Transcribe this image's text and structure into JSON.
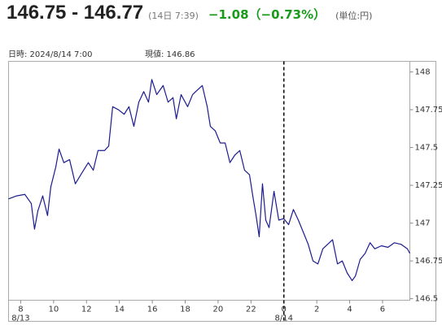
{
  "chart_data": {
    "type": "line",
    "title": "146.75 - 146.77",
    "subtitle": "(14日 7:39)",
    "change": "−1.08（−0.73%）",
    "unit_note": "(単位:円)",
    "info": [
      "日時: 2024/8/14 7:00",
      "現値: 146.86"
    ],
    "color": "#1c1c8f",
    "xlim": [
      7.26,
      31.66
    ],
    "ylim": [
      146.49,
      148.07
    ],
    "yticks": [
      148,
      147.75,
      147.5,
      147.25,
      147,
      146.75,
      146.5
    ],
    "xticks": [
      8,
      10,
      12,
      14,
      16,
      18,
      20,
      22,
      {
        "value": 24,
        "label": "0"
      },
      {
        "value": 26,
        "label": "2"
      },
      {
        "value": 28,
        "label": "4"
      },
      {
        "value": 30,
        "label": "6"
      }
    ],
    "date_labels": [
      {
        "value": 8,
        "label": "8/13"
      },
      {
        "value": 24,
        "label": "8/14"
      }
    ],
    "day_separator": 24,
    "x": [
      7.26,
      7.75,
      8.25,
      8.64,
      8.84,
      9.04,
      9.34,
      9.63,
      9.83,
      10.13,
      10.33,
      10.62,
      10.97,
      11.32,
      11.71,
      12.11,
      12.41,
      12.7,
      13.1,
      13.35,
      13.59,
      13.94,
      14.29,
      14.58,
      14.88,
      15.18,
      15.48,
      15.77,
      15.97,
      16.27,
      16.66,
      16.96,
      17.26,
      17.46,
      17.75,
      18.15,
      18.45,
      18.74,
      19.04,
      19.34,
      19.53,
      19.83,
      20.13,
      20.43,
      20.72,
      21.02,
      21.32,
      21.61,
      21.91,
      22.11,
      22.31,
      22.5,
      22.7,
      22.9,
      23.1,
      23.4,
      23.69,
      23.99,
      24.29,
      24.58,
      24.88,
      25.18,
      25.48,
      25.77,
      26.07,
      26.37,
      26.66,
      26.96,
      27.26,
      27.55,
      27.85,
      28.15,
      28.35,
      28.64,
      28.94,
      29.24,
      29.53,
      29.93,
      30.33,
      30.72,
      31.12,
      31.51,
      31.66
    ],
    "values": [
      147.16,
      147.18,
      147.19,
      147.13,
      146.96,
      147.08,
      147.18,
      147.05,
      147.24,
      147.37,
      147.49,
      147.4,
      147.42,
      147.26,
      147.33,
      147.4,
      147.35,
      147.48,
      147.48,
      147.51,
      147.77,
      147.75,
      147.72,
      147.77,
      147.64,
      147.8,
      147.87,
      147.8,
      147.95,
      147.85,
      147.91,
      147.8,
      147.83,
      147.69,
      147.85,
      147.77,
      147.85,
      147.88,
      147.91,
      147.77,
      147.64,
      147.61,
      147.53,
      147.53,
      147.4,
      147.45,
      147.48,
      147.35,
      147.32,
      147.18,
      147.05,
      146.91,
      147.26,
      147.02,
      146.97,
      147.21,
      147.02,
      147.03,
      146.99,
      147.09,
      147.02,
      146.94,
      146.86,
      146.75,
      146.73,
      146.83,
      146.86,
      146.89,
      146.73,
      146.75,
      146.67,
      146.62,
      146.65,
      146.76,
      146.8,
      146.87,
      146.83,
      146.85,
      146.84,
      146.87,
      146.86,
      146.83,
      146.8
    ]
  }
}
